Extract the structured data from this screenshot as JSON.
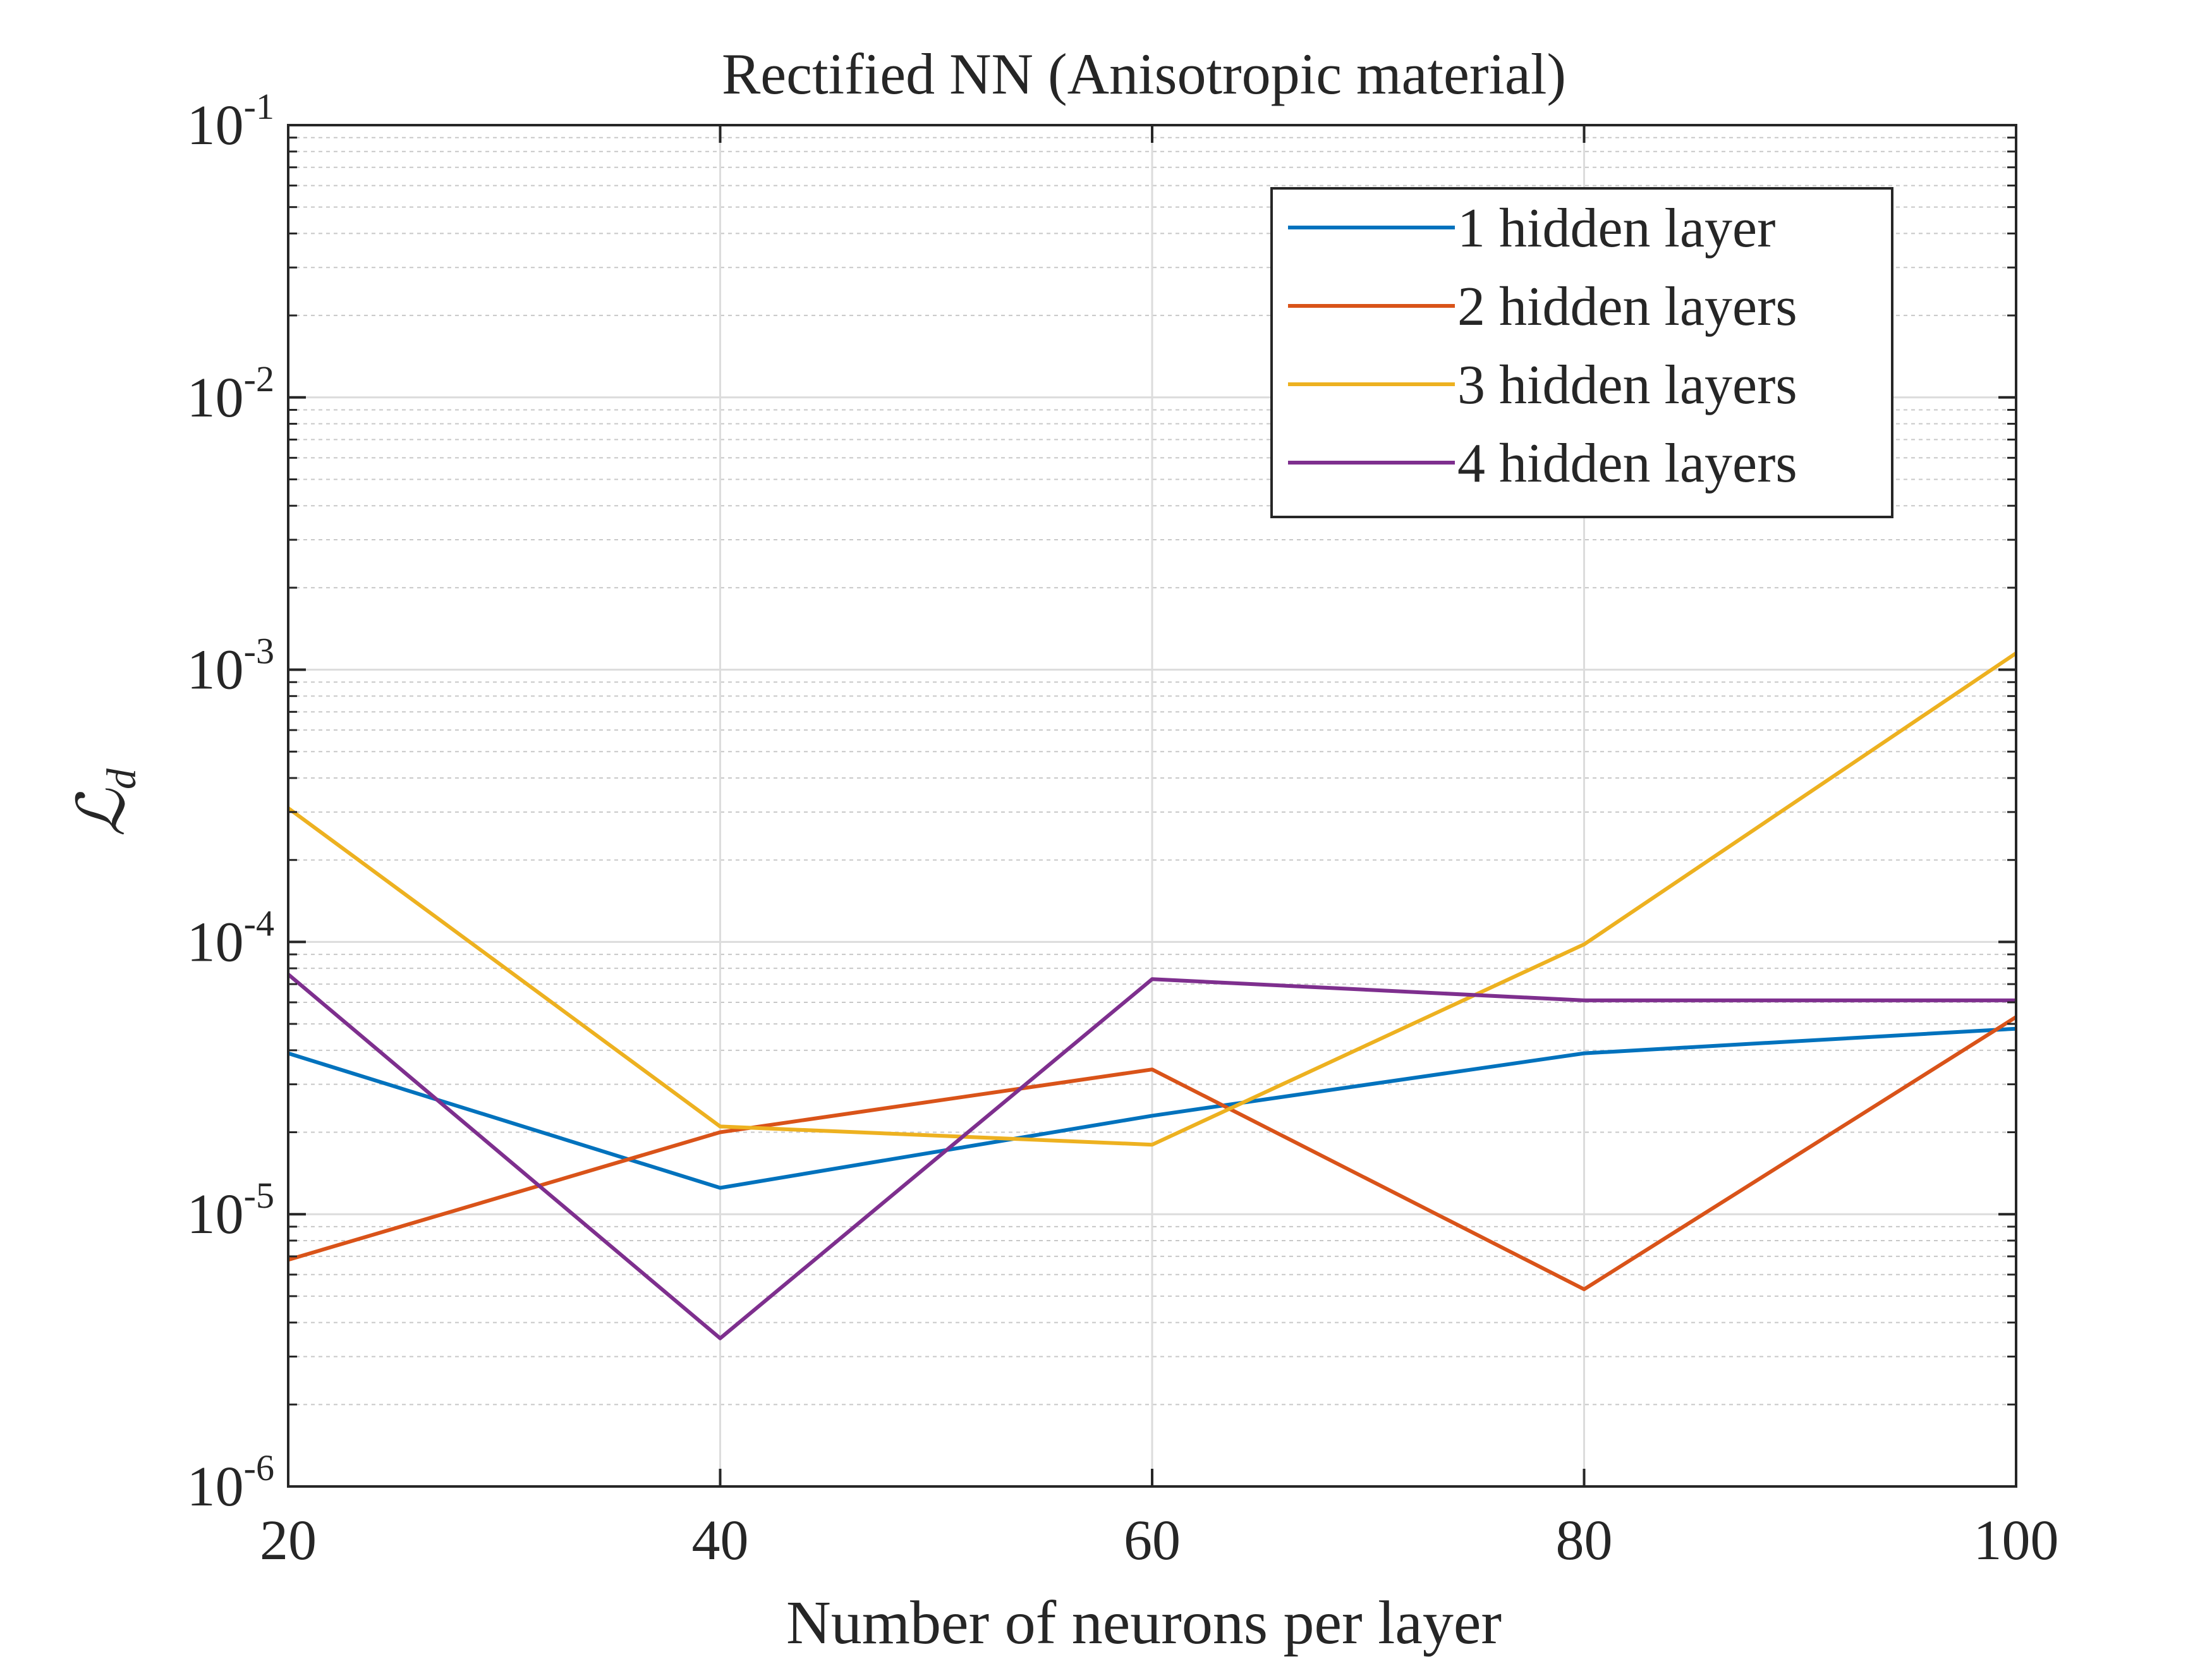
{
  "chart_data": {
    "type": "line",
    "title": "Rectified NN (Anisotropic material)",
    "xlabel": "Number of neurons per layer",
    "ylabel": "ℒ",
    "ylabel_subscript": "d",
    "x": [
      20,
      40,
      60,
      80,
      100
    ],
    "xlim": [
      20,
      100
    ],
    "ylim": [
      1e-06,
      0.1
    ],
    "yscale": "log",
    "xticks": [
      20,
      40,
      60,
      80,
      100
    ],
    "yticks": [
      {
        "base": "10",
        "exp": "-6",
        "value": 1e-06
      },
      {
        "base": "10",
        "exp": "-5",
        "value": 1e-05
      },
      {
        "base": "10",
        "exp": "-4",
        "value": 0.0001
      },
      {
        "base": "10",
        "exp": "-3",
        "value": 0.001
      },
      {
        "base": "10",
        "exp": "-2",
        "value": 0.01
      },
      {
        "base": "10",
        "exp": "-1",
        "value": 0.1
      }
    ],
    "grid": true,
    "legend_position": "top-right",
    "series": [
      {
        "name": "1 hidden layer",
        "color": "#0072BD",
        "values": [
          3.9e-05,
          1.25e-05,
          2.3e-05,
          3.9e-05,
          4.8e-05
        ]
      },
      {
        "name": "2 hidden layers",
        "color": "#D95319",
        "values": [
          6.8e-06,
          2e-05,
          3.4e-05,
          5.3e-06,
          5.3e-05
        ]
      },
      {
        "name": "3 hidden layers",
        "color": "#EDB120",
        "values": [
          0.00031,
          2.1e-05,
          1.8e-05,
          9.8e-05,
          0.00115
        ]
      },
      {
        "name": "4 hidden layers",
        "color": "#7E2F8E",
        "values": [
          7.6e-05,
          3.5e-06,
          7.3e-05,
          6.1e-05,
          6.1e-05
        ]
      }
    ]
  }
}
